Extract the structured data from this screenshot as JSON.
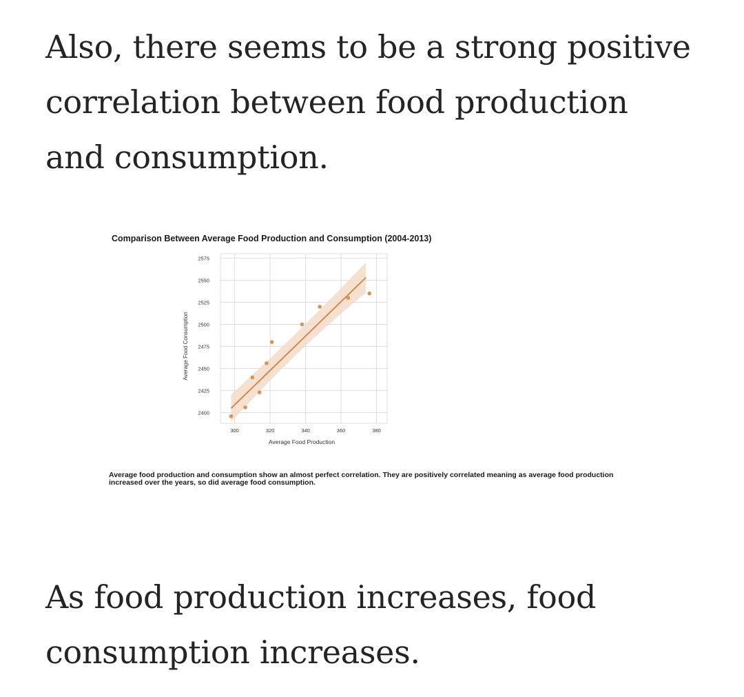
{
  "article": {
    "intro_lines": [
      "Also, there seems to be a strong positive",
      "correlation between food production",
      "and consumption."
    ],
    "outro_lines": [
      "As food production increases, food",
      "consumption increases."
    ]
  },
  "figure": {
    "caption_lines": [
      "Average food production and consumption show an almost perfect correlation. They are positively correlated meaning as average food production",
      "increased over the years, so did average food consumption."
    ]
  },
  "chart_data": {
    "type": "scatter",
    "title": "Comparison Between Average Food Production and Consumption (2004-2013)",
    "xlabel": "Average Food Production",
    "ylabel": "Average Food Consumption",
    "xlim": [
      292,
      386
    ],
    "ylim": [
      2388,
      2580
    ],
    "xticks": [
      300,
      320,
      340,
      360,
      380
    ],
    "yticks": [
      2400,
      2425,
      2450,
      2475,
      2500,
      2525,
      2550,
      2575
    ],
    "grid": true,
    "points": [
      {
        "x": 298,
        "y": 2396
      },
      {
        "x": 306,
        "y": 2406
      },
      {
        "x": 310,
        "y": 2440
      },
      {
        "x": 314,
        "y": 2423
      },
      {
        "x": 318,
        "y": 2456
      },
      {
        "x": 321,
        "y": 2480
      },
      {
        "x": 338,
        "y": 2500
      },
      {
        "x": 348,
        "y": 2520
      },
      {
        "x": 364,
        "y": 2530
      },
      {
        "x": 376,
        "y": 2535
      }
    ],
    "regression": {
      "x": [
        298,
        374
      ],
      "y": [
        2405,
        2553
      ]
    },
    "colors": {
      "points": "#d9944f",
      "line": "#d08a4c",
      "band": "#f3dcc8",
      "grid": "#dedede"
    }
  }
}
